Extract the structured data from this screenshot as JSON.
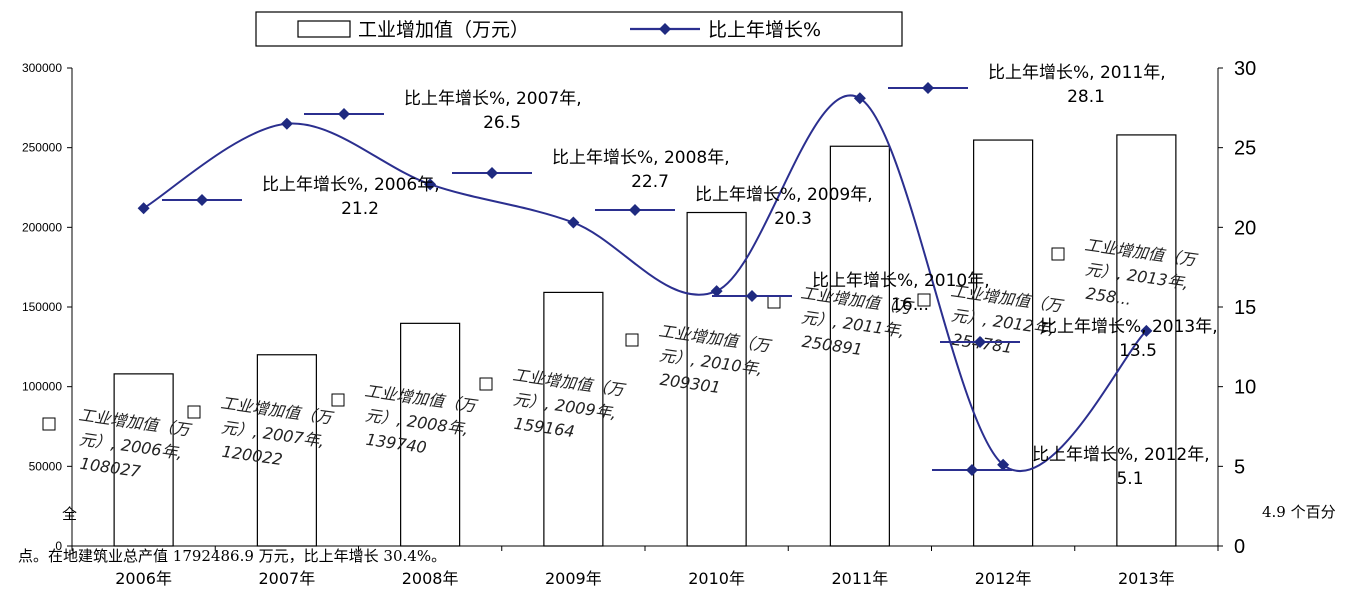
{
  "chart_data": {
    "type": "bar",
    "categories": [
      "2006年",
      "2007年",
      "2008年",
      "2009年",
      "2010年",
      "2011年",
      "2012年",
      "2013年"
    ],
    "series": [
      {
        "name": "工业增加值（万元）",
        "type": "bar",
        "axis": "left",
        "values": [
          108027,
          120022,
          139740,
          159164,
          209301,
          250891,
          254781,
          258000
        ]
      },
      {
        "name": "比上年增长%",
        "type": "line",
        "axis": "right",
        "values": [
          21.2,
          26.5,
          22.7,
          20.3,
          16.0,
          28.1,
          5.1,
          13.5
        ]
      }
    ],
    "y_left": {
      "ylim": [
        0,
        300000
      ],
      "ticks": [
        "0",
        "50000",
        "100000",
        "150000",
        "200000",
        "250000",
        "300000"
      ]
    },
    "y_right": {
      "ylim": [
        0,
        30
      ],
      "ticks": [
        "0",
        "5",
        "10",
        "15",
        "20",
        "25",
        "30"
      ]
    },
    "legend": {
      "position": "top",
      "items": [
        "工业增加值（万元）",
        "比上年增长%"
      ]
    },
    "colors": {
      "bar_fill": "#ffffff",
      "bar_stroke": "#000000",
      "line": "#2b2f8f",
      "marker": "#1f2a80"
    },
    "data_labels": {
      "line": [
        [
          "比上年增长%, 2006年,",
          "21.2"
        ],
        [
          "比上年增长%, 2007年,",
          "26.5"
        ],
        [
          "比上年增长%, 2008年,",
          "22.7"
        ],
        [
          "比上年增长%, 2009年,",
          "20.3"
        ],
        [
          "比上年增长%, 2010年,",
          "16..."
        ],
        [
          "比上年增长%, 2011年,",
          "28.1"
        ],
        [
          "比上年增长%, 2012年,",
          "5.1"
        ],
        [
          "比上年增长%, 2013年,",
          "13.5"
        ]
      ],
      "bars": [
        [
          "工业增加值（万",
          "元）, 2006年,",
          "108027"
        ],
        [
          "工业增加值（万",
          "元）, 2007年,",
          "120022"
        ],
        [
          "工业增加值（万",
          "元）, 2008年,",
          "139740"
        ],
        [
          "工业增加值（万",
          "元）, 2009年,",
          "159164"
        ],
        [
          "工业增加值（万",
          "元）, 2010年,",
          "209301"
        ],
        [
          "工业增加值（万",
          "元）, 2011年,",
          "250891"
        ],
        [
          "工业增加值（万",
          "元）, 2012年,",
          "254781"
        ],
        [
          "工业增加值（万",
          "元）, 2013年,",
          "258..."
        ]
      ]
    }
  },
  "body_text": {
    "line1_start": "全",
    "line1_end": "4.9 个百分",
    "line2": "点。在地建筑业总产值 1792486.9 万元，比上年增长 30.4%。"
  }
}
